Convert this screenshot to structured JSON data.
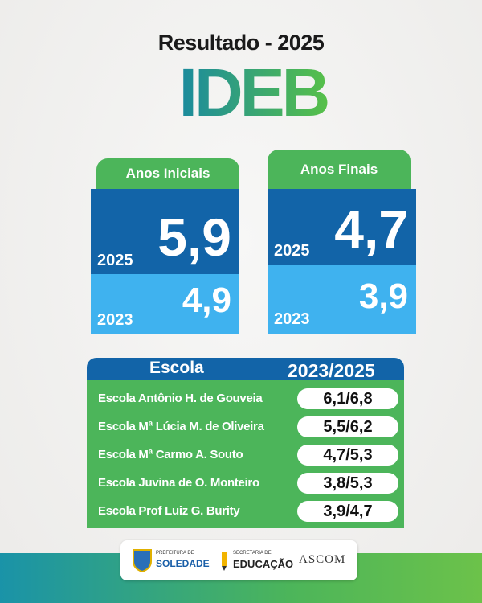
{
  "header": {
    "title": "Resultado - 2025",
    "logo": "IDEB"
  },
  "cards": [
    {
      "label": "Anos Iniciais",
      "current_year": "2025",
      "current_value": "5,9",
      "previous_year": "2023",
      "previous_value": "4,9"
    },
    {
      "label": "Anos Finais",
      "current_year": "2025",
      "current_value": "4,7",
      "previous_year": "2023",
      "previous_value": "3,9"
    }
  ],
  "table": {
    "header": [
      "Escola",
      "2023/2025"
    ],
    "rows": [
      [
        "Escola Antônio H. de Gouveia",
        "6,1/6,8"
      ],
      [
        "Escola Mª Lúcia M. de Oliveira",
        "5,5/6,2"
      ],
      [
        "Escola Mª Carmo A. Souto",
        "4,7/5,3"
      ],
      [
        "Escola Juvina de O. Monteiro",
        "3,8/5,3"
      ],
      [
        "Escola Prof Luiz G. Burity",
        "3,9/4,7"
      ]
    ]
  },
  "footer": {
    "logos": [
      {
        "small": "PREFEITURA DE",
        "name": "SOLEDADE"
      },
      {
        "small": "SECRETARIA DE",
        "name": "EDUCAÇÃO"
      },
      {
        "name": "ASCOM"
      }
    ]
  }
}
